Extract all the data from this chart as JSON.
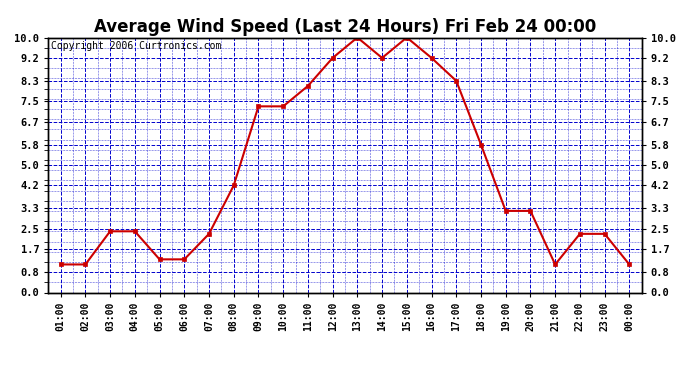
{
  "title": "Average Wind Speed (Last 24 Hours) Fri Feb 24 00:00",
  "copyright": "Copyright 2006 Curtronics.com",
  "x_labels": [
    "01:00",
    "02:00",
    "03:00",
    "04:00",
    "05:00",
    "06:00",
    "07:00",
    "08:00",
    "09:00",
    "10:00",
    "11:00",
    "12:00",
    "13:00",
    "14:00",
    "15:00",
    "16:00",
    "17:00",
    "18:00",
    "19:00",
    "20:00",
    "21:00",
    "22:00",
    "23:00",
    "00:00"
  ],
  "y_values": [
    1.1,
    1.1,
    2.4,
    2.4,
    1.3,
    1.3,
    2.3,
    4.2,
    7.3,
    7.3,
    8.1,
    9.2,
    10.0,
    9.2,
    10.0,
    9.2,
    8.3,
    5.8,
    3.2,
    3.2,
    1.1,
    2.3,
    2.3,
    1.1
  ],
  "line_color": "#cc0000",
  "marker_color": "#cc0000",
  "bg_color": "#ffffff",
  "plot_bg_color": "#ffffff",
  "grid_color": "#0000cc",
  "title_fontsize": 12,
  "copyright_fontsize": 7,
  "ylim": [
    0.0,
    10.0
  ],
  "yticks": [
    0.0,
    0.8,
    1.7,
    2.5,
    3.3,
    4.2,
    5.0,
    5.8,
    6.7,
    7.5,
    8.3,
    9.2,
    10.0
  ]
}
